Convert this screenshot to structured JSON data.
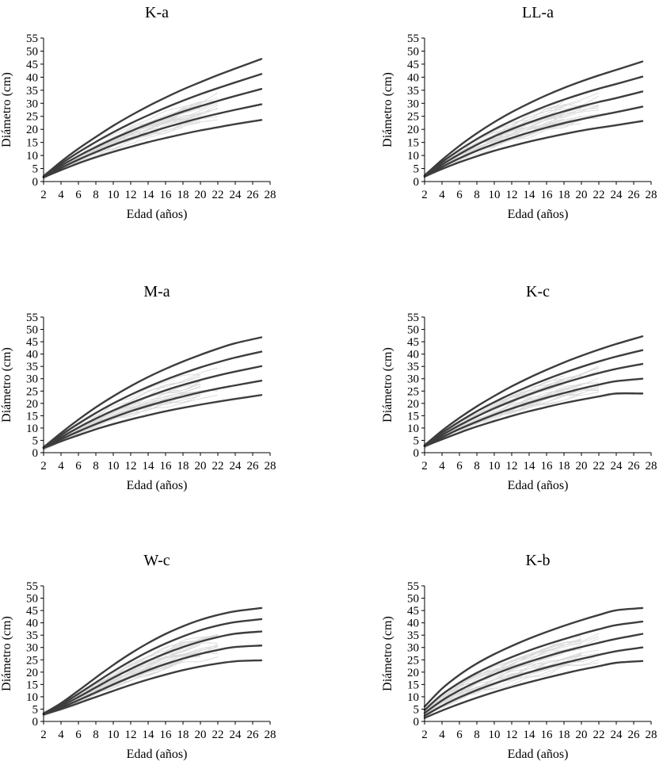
{
  "chart_data": [
    {
      "type": "line",
      "title": "K-a",
      "xlabel": "Edad (años)",
      "ylabel": "Diámetro (cm)",
      "xlim": [
        2,
        28
      ],
      "ylim": [
        0,
        55
      ],
      "xticks": [
        2,
        4,
        6,
        8,
        10,
        12,
        14,
        16,
        18,
        20,
        22,
        24,
        26,
        28
      ],
      "yticks": [
        0,
        5,
        10,
        15,
        20,
        25,
        30,
        35,
        40,
        45,
        50,
        55
      ],
      "grid": false,
      "legend": "none",
      "curve_x": [
        2,
        4,
        6,
        8,
        10,
        12,
        14,
        16,
        18,
        20,
        22,
        24,
        27
      ],
      "series": [
        {
          "values": [
            2.0,
            7.6,
            12.6,
            17.1,
            21.4,
            25.3,
            28.9,
            32.2,
            35.3,
            38.1,
            40.8,
            43.3,
            47.0
          ]
        },
        {
          "values": [
            1.9,
            6.8,
            11.2,
            15.2,
            18.9,
            22.3,
            25.4,
            28.3,
            31.0,
            33.5,
            35.8,
            38.0,
            41.2
          ]
        },
        {
          "values": [
            1.8,
            6.0,
            9.8,
            13.2,
            16.4,
            19.3,
            22.0,
            24.5,
            26.8,
            28.9,
            30.9,
            32.8,
            35.5
          ]
        },
        {
          "values": [
            1.7,
            5.2,
            8.4,
            11.3,
            14.0,
            16.4,
            18.6,
            20.7,
            22.6,
            24.4,
            26.0,
            27.5,
            29.6
          ]
        },
        {
          "values": [
            1.6,
            4.4,
            7.0,
            9.3,
            11.4,
            13.3,
            15.1,
            16.7,
            18.2,
            19.6,
            20.8,
            22.0,
            23.6
          ]
        }
      ]
    },
    {
      "type": "line",
      "title": "LL-a",
      "xlabel": "Edad (años)",
      "ylabel": "Diámetro (cm)",
      "xlim": [
        2,
        28
      ],
      "ylim": [
        0,
        55
      ],
      "xticks": [
        2,
        4,
        6,
        8,
        10,
        12,
        14,
        16,
        18,
        20,
        22,
        24,
        26,
        28
      ],
      "yticks": [
        0,
        5,
        10,
        15,
        20,
        25,
        30,
        35,
        40,
        45,
        50,
        55
      ],
      "grid": false,
      "legend": "none",
      "curve_x": [
        2,
        4,
        6,
        8,
        10,
        12,
        14,
        16,
        18,
        20,
        22,
        24,
        27
      ],
      "series": [
        {
          "values": [
            2.3,
            8.3,
            13.7,
            18.5,
            22.8,
            26.6,
            30.0,
            33.1,
            35.9,
            38.4,
            40.7,
            42.8,
            46.0
          ]
        },
        {
          "values": [
            2.2,
            7.4,
            12.1,
            16.3,
            20.0,
            23.3,
            26.3,
            29.0,
            31.4,
            33.6,
            35.6,
            37.4,
            40.2
          ]
        },
        {
          "values": [
            2.1,
            6.5,
            10.5,
            14.1,
            17.3,
            20.1,
            22.6,
            24.9,
            26.9,
            28.8,
            30.5,
            32.0,
            34.5
          ]
        },
        {
          "values": [
            2.0,
            5.6,
            8.9,
            11.8,
            14.4,
            16.7,
            18.8,
            20.7,
            22.4,
            23.9,
            25.3,
            26.6,
            28.7
          ]
        },
        {
          "values": [
            1.9,
            4.8,
            7.4,
            9.7,
            11.8,
            13.6,
            15.3,
            16.8,
            18.2,
            19.5,
            20.6,
            21.6,
            23.2
          ]
        }
      ]
    },
    {
      "type": "line",
      "title": "M-a",
      "xlabel": "Edad (años)",
      "ylabel": "Diámetro (cm)",
      "xlim": [
        2,
        28
      ],
      "ylim": [
        0,
        55
      ],
      "xticks": [
        2,
        4,
        6,
        8,
        10,
        12,
        14,
        16,
        18,
        20,
        22,
        24,
        26,
        28
      ],
      "yticks": [
        0,
        5,
        10,
        15,
        20,
        25,
        30,
        35,
        40,
        45,
        50,
        55
      ],
      "grid": false,
      "legend": "none",
      "curve_x": [
        2,
        4,
        6,
        8,
        10,
        12,
        14,
        16,
        18,
        20,
        22,
        24,
        27
      ],
      "series": [
        {
          "values": [
            2.2,
            8.0,
            13.4,
            18.4,
            22.9,
            27.0,
            30.7,
            34.0,
            37.0,
            39.7,
            42.2,
            44.4,
            46.8
          ]
        },
        {
          "values": [
            2.1,
            7.1,
            11.8,
            16.1,
            20.0,
            23.5,
            26.7,
            29.6,
            32.2,
            34.6,
            36.7,
            38.6,
            41.0
          ]
        },
        {
          "values": [
            2.0,
            6.2,
            10.2,
            13.8,
            17.1,
            20.1,
            22.8,
            25.3,
            27.5,
            29.5,
            31.3,
            32.9,
            35.1
          ]
        },
        {
          "values": [
            1.9,
            5.4,
            8.6,
            11.6,
            14.3,
            16.8,
            19.0,
            21.0,
            22.8,
            24.5,
            26.0,
            27.3,
            29.2
          ]
        },
        {
          "values": [
            1.8,
            4.6,
            7.1,
            9.5,
            11.6,
            13.5,
            15.2,
            16.8,
            18.2,
            19.5,
            20.7,
            21.8,
            23.4
          ]
        }
      ]
    },
    {
      "type": "line",
      "title": "K-c",
      "xlabel": "Edad (años)",
      "ylabel": "Diámetro (cm)",
      "xlim": [
        2,
        28
      ],
      "ylim": [
        0,
        55
      ],
      "xticks": [
        2,
        4,
        6,
        8,
        10,
        12,
        14,
        16,
        18,
        20,
        22,
        24,
        26,
        28
      ],
      "yticks": [
        0,
        5,
        10,
        15,
        20,
        25,
        30,
        35,
        40,
        45,
        50,
        55
      ],
      "grid": false,
      "legend": "none",
      "curve_x": [
        2,
        4,
        6,
        8,
        10,
        12,
        14,
        16,
        18,
        20,
        22,
        24,
        27
      ],
      "series": [
        {
          "values": [
            3.0,
            8.9,
            14.1,
            18.8,
            23.0,
            26.9,
            30.4,
            33.6,
            36.6,
            39.3,
            41.8,
            44.1,
            47.2
          ]
        },
        {
          "values": [
            2.9,
            8.0,
            12.6,
            16.8,
            20.5,
            23.9,
            27.0,
            29.8,
            32.4,
            34.8,
            37.0,
            39.0,
            41.6
          ]
        },
        {
          "values": [
            2.8,
            7.1,
            11.1,
            14.7,
            18.0,
            20.9,
            23.6,
            26.1,
            28.3,
            30.4,
            32.3,
            34.0,
            36.0
          ]
        },
        {
          "values": [
            2.7,
            6.2,
            9.6,
            12.6,
            15.4,
            17.9,
            20.2,
            22.3,
            24.2,
            26.0,
            27.6,
            29.0,
            30.0
          ]
        },
        {
          "values": [
            2.6,
            5.4,
            8.1,
            10.6,
            12.8,
            14.9,
            16.8,
            18.5,
            20.1,
            21.5,
            22.8,
            24.0,
            24.0
          ]
        }
      ]
    },
    {
      "type": "line",
      "title": "W-c",
      "xlabel": "Edad (años)",
      "ylabel": "Diámetro (cm)",
      "xlim": [
        2,
        28
      ],
      "ylim": [
        0,
        55
      ],
      "xticks": [
        2,
        4,
        6,
        8,
        10,
        12,
        14,
        16,
        18,
        20,
        22,
        24,
        26,
        28
      ],
      "yticks": [
        0,
        5,
        10,
        15,
        20,
        25,
        30,
        35,
        40,
        45,
        50,
        55
      ],
      "grid": false,
      "legend": "none",
      "curve_x": [
        2,
        4,
        6,
        8,
        10,
        12,
        14,
        16,
        18,
        20,
        22,
        24,
        27
      ],
      "series": [
        {
          "values": [
            3.2,
            7.4,
            12.5,
            17.8,
            22.9,
            27.6,
            31.8,
            35.5,
            38.6,
            41.2,
            43.2,
            44.7,
            46.0
          ]
        },
        {
          "values": [
            3.1,
            6.8,
            11.2,
            15.8,
            20.3,
            24.5,
            28.3,
            31.6,
            34.5,
            37.0,
            38.9,
            40.3,
            41.5
          ]
        },
        {
          "values": [
            3.0,
            6.2,
            9.9,
            13.8,
            17.7,
            21.3,
            24.6,
            27.6,
            30.2,
            32.4,
            34.2,
            35.6,
            36.5
          ]
        },
        {
          "values": [
            2.9,
            5.6,
            8.6,
            11.8,
            15.0,
            18.0,
            20.8,
            23.3,
            25.5,
            27.4,
            29.0,
            30.2,
            30.8
          ]
        },
        {
          "values": [
            2.8,
            5.0,
            7.4,
            9.9,
            12.4,
            14.8,
            17.0,
            19.0,
            20.8,
            22.3,
            23.5,
            24.4,
            24.8
          ]
        }
      ]
    },
    {
      "type": "line",
      "title": "K-b",
      "xlabel": "Edad (años)",
      "ylabel": "Diámetro (cm)",
      "xlim": [
        2,
        28
      ],
      "ylim": [
        0,
        55
      ],
      "xticks": [
        2,
        4,
        6,
        8,
        10,
        12,
        14,
        16,
        18,
        20,
        22,
        24,
        26,
        28
      ],
      "yticks": [
        0,
        5,
        10,
        15,
        20,
        25,
        30,
        35,
        40,
        45,
        50,
        55
      ],
      "grid": false,
      "legend": "none",
      "curve_x": [
        2,
        4,
        6,
        8,
        10,
        12,
        14,
        16,
        18,
        20,
        22,
        24,
        27
      ],
      "series": [
        {
          "values": [
            6.0,
            13.3,
            18.9,
            23.5,
            27.3,
            30.6,
            33.6,
            36.3,
            38.8,
            41.1,
            43.2,
            45.1,
            46.0
          ]
        },
        {
          "values": [
            4.6,
            10.9,
            15.7,
            19.7,
            23.1,
            26.1,
            28.8,
            31.2,
            33.4,
            35.5,
            37.4,
            39.1,
            40.5
          ]
        },
        {
          "values": [
            3.4,
            8.5,
            12.6,
            16.1,
            19.1,
            21.8,
            24.2,
            26.4,
            28.4,
            30.2,
            31.9,
            33.5,
            35.5
          ]
        },
        {
          "values": [
            2.3,
            6.3,
            9.7,
            12.7,
            15.3,
            17.7,
            19.9,
            21.9,
            23.7,
            25.4,
            27.0,
            28.5,
            30.0
          ]
        },
        {
          "values": [
            1.4,
            4.4,
            7.1,
            9.6,
            11.9,
            14.0,
            15.9,
            17.7,
            19.4,
            21.0,
            22.4,
            23.8,
            24.5
          ]
        }
      ]
    }
  ]
}
